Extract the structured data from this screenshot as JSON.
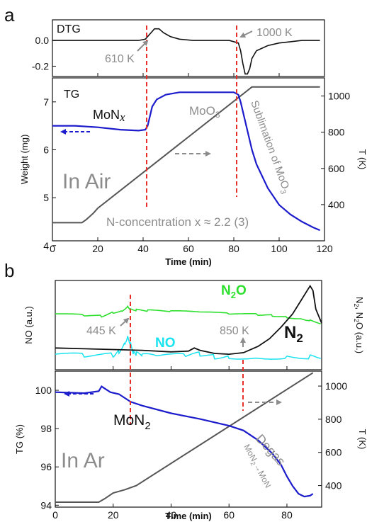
{
  "colors": {
    "black": "#111111",
    "blue": "#1c1ccc",
    "gray": "#8c8c8c",
    "dark_gray": "#555555",
    "red_dash": "#e8302a",
    "green": "#2ee02e",
    "cyan": "#19e3f0"
  },
  "panel_a": {
    "label": "a",
    "dtg_label": "DTG",
    "tg_label": "TG",
    "ylabel_left": "Weight (mg)",
    "ylabel_right": "T (K)",
    "xlabel": "Time (min)",
    "ann_610": "610 K",
    "ann_1000": "1000 K",
    "ann_monx": "MoN",
    "ann_monx_sub": "x",
    "ann_moo3": "MoO",
    "ann_moo3_sub": "3",
    "ann_air": "In Air",
    "ann_sublimation": "Sublimation of MoO",
    "ann_sublimation_sub": "3",
    "ann_nconc": "N-concentration x ≈ 2.2 (3)"
  },
  "panel_b": {
    "label": "b",
    "ylabel_top_left": "NO (a.u.)",
    "ylabel_top_right": "N",
    "ylabel_top_right_2": "2",
    "ylabel_top_right_3": ", N",
    "ylabel_top_right_4": "2",
    "ylabel_top_right_5": "O (a.u.)",
    "ylabel_bottom_left": "TG (%)",
    "ylabel_bottom_right": "T (K)",
    "xlabel": "Time (min)",
    "ann_n2o": "N",
    "ann_n2o_sub": "2",
    "ann_n2o_tail": "O",
    "ann_no": "NO",
    "ann_n2": "N",
    "ann_n2_sub": "2",
    "ann_445": "445 K",
    "ann_850": "850 K",
    "ann_mon2": "MoN",
    "ann_mon2_sub": "2",
    "ann_ar": "In Ar",
    "ann_degas": "Degas",
    "ann_reaction": "MoN",
    "ann_reaction_sub": "2",
    "ann_reaction_tail": "→MoN"
  },
  "chart_data": [
    {
      "type": "line",
      "panel": "a-top",
      "title": "DTG",
      "xlim": [
        0,
        120
      ],
      "ylim": [
        -0.28,
        0.16
      ],
      "yticks": [
        0.0,
        -0.2
      ],
      "series": [
        {
          "name": "DTG",
          "x": [
            0,
            20,
            30,
            38,
            41,
            43,
            45,
            47,
            49,
            52,
            56,
            62,
            70,
            78,
            82,
            83,
            84,
            85,
            86,
            87,
            88,
            90,
            95,
            100,
            105,
            110,
            115,
            118
          ],
          "y": [
            0.0,
            0.0,
            0.0,
            0.0,
            0.01,
            0.05,
            0.09,
            0.09,
            0.06,
            0.03,
            0.01,
            0.0,
            0.0,
            0.0,
            -0.02,
            -0.08,
            -0.18,
            -0.26,
            -0.26,
            -0.22,
            -0.14,
            -0.08,
            -0.04,
            -0.02,
            -0.01,
            0.0,
            0.0,
            0.0
          ]
        }
      ]
    },
    {
      "type": "line",
      "panel": "a-bottom",
      "title": "TG",
      "xlabel": "Time (min)",
      "ylabel": "Weight (mg)",
      "y2label": "T (K)",
      "xlim": [
        0,
        120
      ],
      "ylim": [
        4.1,
        7.5
      ],
      "y2lim": [
        200,
        1100
      ],
      "xticks": [
        0,
        20,
        40,
        60,
        80,
        100,
        120
      ],
      "yticks": [
        4,
        5,
        6,
        7
      ],
      "y2ticks": [
        400,
        600,
        800,
        1000
      ],
      "series": [
        {
          "name": "Weight",
          "axis": "left",
          "x": [
            0,
            10,
            20,
            30,
            38,
            41,
            42,
            43,
            44,
            46,
            50,
            56,
            60,
            70,
            80,
            82,
            83,
            84,
            85,
            86,
            88,
            90,
            95,
            100,
            105,
            110,
            115,
            118
          ],
          "y": [
            6.5,
            6.5,
            6.47,
            6.42,
            6.4,
            6.42,
            6.5,
            6.7,
            6.9,
            7.05,
            7.15,
            7.2,
            7.2,
            7.2,
            7.2,
            7.15,
            7.0,
            6.8,
            6.6,
            6.4,
            6.0,
            5.7,
            5.2,
            4.85,
            4.65,
            4.5,
            4.38,
            4.32
          ]
        },
        {
          "name": "Temperature",
          "axis": "right",
          "x": [
            0,
            13,
            15,
            18,
            20,
            88,
            118
          ],
          "y": [
            300,
            300,
            318,
            352,
            380,
            1050,
            1050
          ]
        }
      ]
    },
    {
      "type": "line",
      "panel": "b-top",
      "xlim": [
        0,
        92
      ],
      "series": [
        {
          "name": "N2O",
          "x": [
            0,
            10,
            16,
            20,
            23,
            25,
            26,
            28,
            32,
            40,
            50,
            60,
            70,
            75,
            80,
            85,
            88,
            92
          ],
          "y": [
            0.72,
            0.7,
            0.69,
            0.74,
            0.76,
            0.82,
            0.78,
            0.77,
            0.76,
            0.75,
            0.74,
            0.72,
            0.71,
            0.7,
            0.68,
            0.66,
            0.64,
            0.6
          ]
        },
        {
          "name": "NO",
          "x": [
            0,
            10,
            20,
            22,
            24,
            25,
            26,
            27,
            28,
            30,
            35,
            45,
            50,
            55,
            60,
            70,
            80,
            88,
            92
          ],
          "y": [
            0.2,
            0.18,
            0.19,
            0.24,
            0.35,
            0.44,
            0.34,
            0.22,
            0.2,
            0.18,
            0.17,
            0.18,
            0.2,
            0.17,
            0.17,
            0.16,
            0.17,
            0.17,
            0.17
          ]
        },
        {
          "name": "N2",
          "x": [
            0,
            10,
            20,
            30,
            40,
            46,
            48,
            50,
            55,
            60,
            65,
            70,
            74,
            78,
            82,
            85,
            87,
            88,
            89,
            90,
            92
          ],
          "y": [
            0.28,
            0.27,
            0.26,
            0.25,
            0.23,
            0.24,
            0.28,
            0.25,
            0.21,
            0.2,
            0.22,
            0.3,
            0.4,
            0.55,
            0.72,
            0.9,
            1.02,
            1.08,
            1.02,
            0.78,
            0.6
          ]
        }
      ]
    },
    {
      "type": "line",
      "panel": "b-bottom",
      "xlabel": "Time (min)",
      "ylabel": "TG (%)",
      "y2label": "T (K)",
      "xlim": [
        0,
        92
      ],
      "ylim": [
        93.9,
        101
      ],
      "y2lim": [
        270,
        1090
      ],
      "xticks": [
        0,
        20,
        40,
        60,
        80
      ],
      "yticks": [
        94,
        96,
        98,
        100
      ],
      "y2ticks": [
        400,
        600,
        800,
        1000
      ],
      "series": [
        {
          "name": "TG",
          "axis": "left",
          "x": [
            0,
            10,
            15,
            16,
            17,
            19,
            22,
            26,
            30,
            40,
            50,
            60,
            65,
            70,
            75,
            78,
            80,
            82,
            84,
            86,
            88,
            89
          ],
          "y": [
            99.9,
            99.85,
            99.95,
            100.2,
            100.1,
            99.9,
            99.8,
            99.4,
            99.2,
            98.8,
            98.5,
            98.15,
            97.9,
            97.4,
            96.7,
            96.1,
            95.5,
            95.0,
            94.6,
            94.45,
            94.5,
            94.6
          ]
        },
        {
          "name": "Temperature",
          "axis": "right",
          "x": [
            0,
            15,
            17,
            20,
            24,
            28,
            89
          ],
          "y": [
            300,
            300,
            320,
            355,
            375,
            400,
            1080
          ]
        }
      ]
    }
  ]
}
